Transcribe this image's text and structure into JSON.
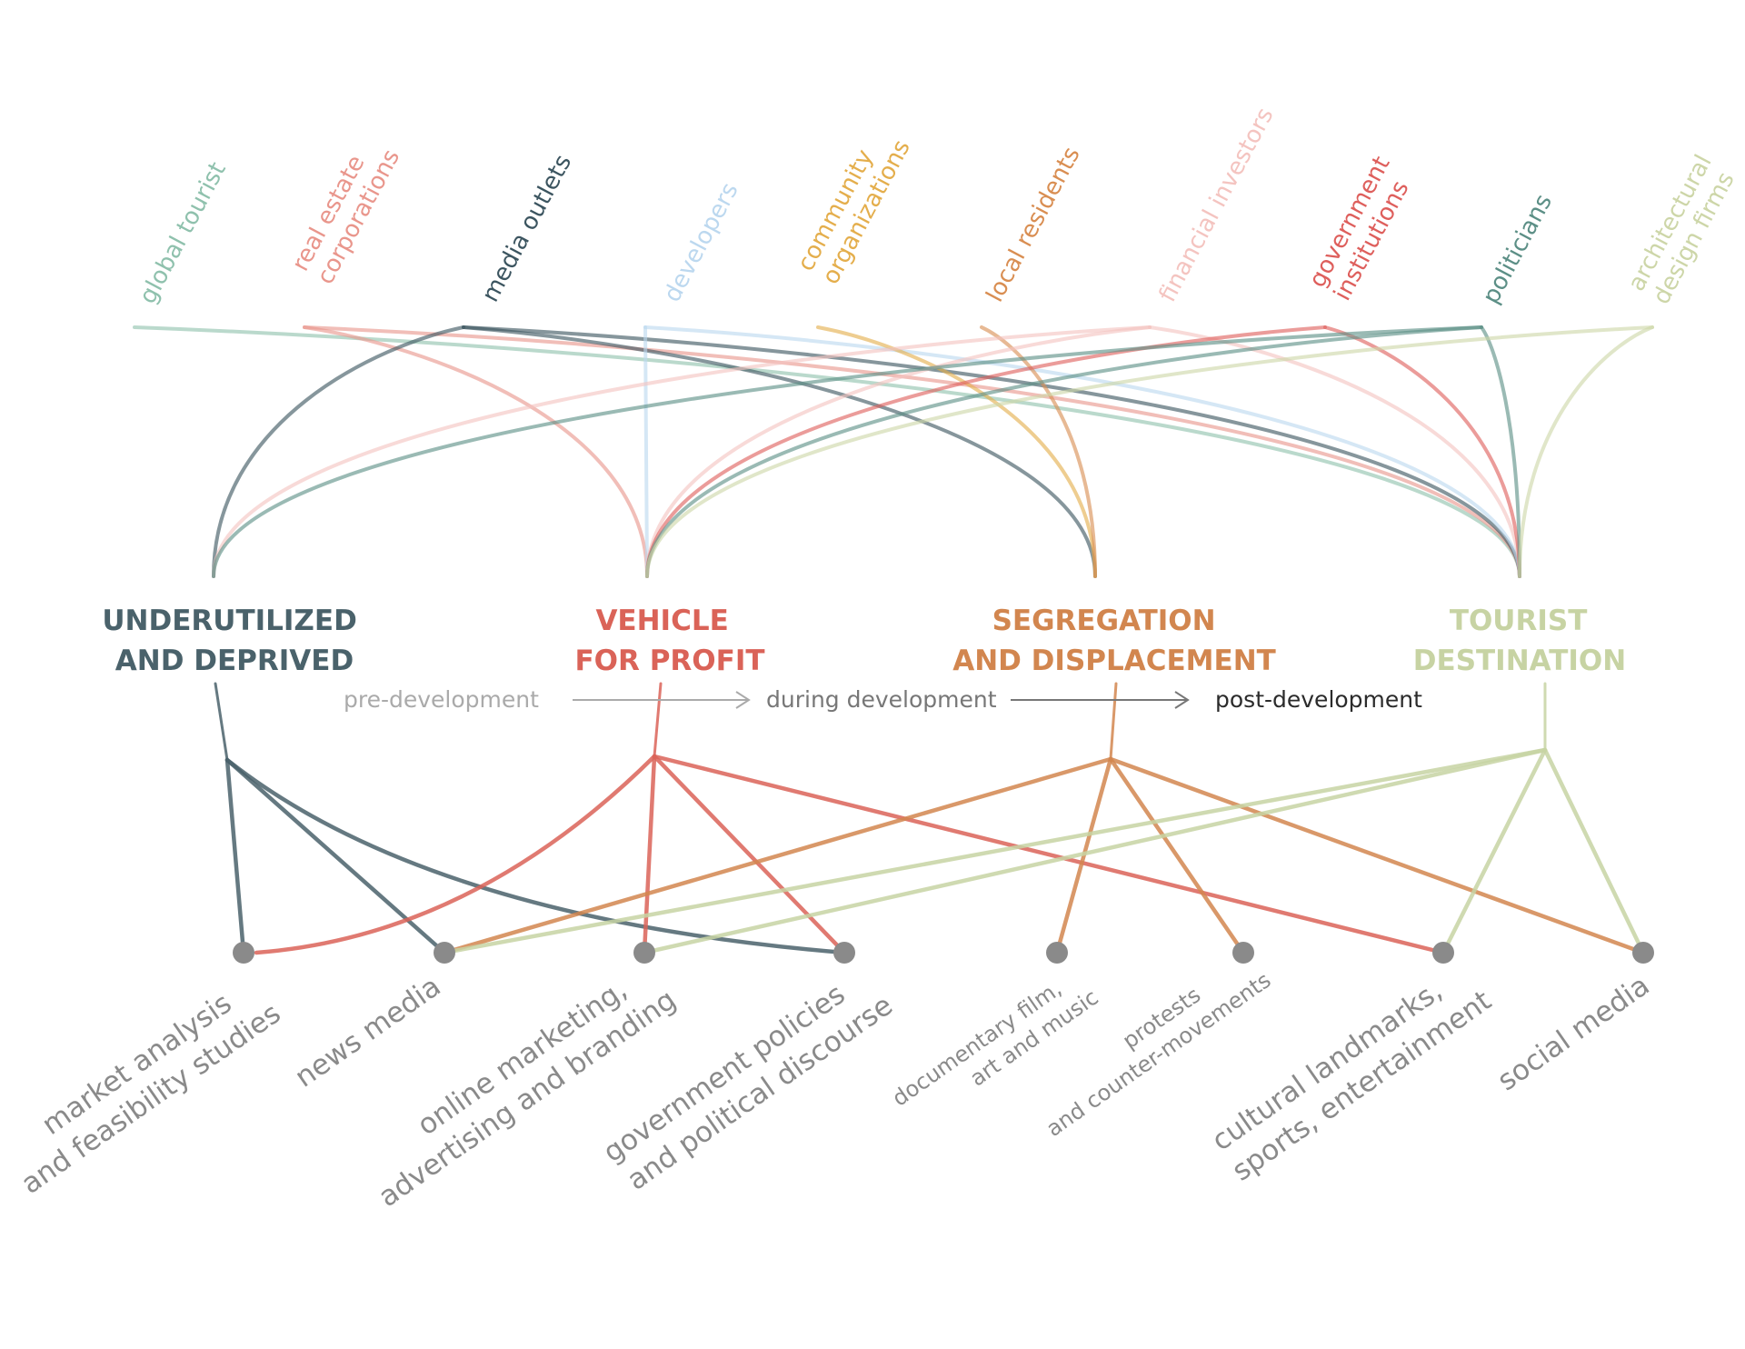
{
  "colors": {
    "global_tourist": "#8fc1ad",
    "real_estate": "#e9968c",
    "media_outlets": "#3c5560",
    "developers": "#bcd8ef",
    "community": "#e4ae4c",
    "local_residents": "#d98e52",
    "financial": "#f4c4c0",
    "government": "#de5f5c",
    "politicians": "#5c8f86",
    "architectural": "#cdd6a8",
    "phase_underutilized": "#4a626b",
    "phase_vehicle": "#da6358",
    "phase_segregation": "#d2864f",
    "phase_tourist": "#c7d3a3",
    "channel_text": "#8a8a8a",
    "stage_pre": "#aaaaaa",
    "stage_during": "#777777",
    "stage_post": "#2b2b2b"
  },
  "actors": [
    {
      "id": "global_tourist",
      "lines": [
        "global tourist"
      ]
    },
    {
      "id": "real_estate",
      "lines": [
        "real estate",
        "corporations"
      ]
    },
    {
      "id": "media_outlets",
      "lines": [
        "media outlets"
      ]
    },
    {
      "id": "developers",
      "lines": [
        "developers"
      ]
    },
    {
      "id": "community",
      "lines": [
        "community",
        "organizations"
      ]
    },
    {
      "id": "local_residents",
      "lines": [
        "local residents"
      ]
    },
    {
      "id": "financial",
      "lines": [
        "financial investors"
      ]
    },
    {
      "id": "government",
      "lines": [
        "government",
        "institutions"
      ]
    },
    {
      "id": "politicians",
      "lines": [
        "politicians"
      ]
    },
    {
      "id": "architectural",
      "lines": [
        "architectural",
        "design firms"
      ]
    }
  ],
  "phases": [
    {
      "id": "underutilized",
      "lines": [
        "UNDERUTILIZED",
        "AND DEPRIVED"
      ]
    },
    {
      "id": "vehicle",
      "lines": [
        "VEHICLE",
        "FOR PROFIT"
      ]
    },
    {
      "id": "segregation",
      "lines": [
        "SEGREGATION",
        "AND DISPLACEMENT"
      ]
    },
    {
      "id": "tourist",
      "lines": [
        "TOURIST",
        "DESTINATION"
      ]
    }
  ],
  "stages": {
    "pre": "pre-development",
    "during": "during development",
    "post": "post-development"
  },
  "channels": [
    {
      "id": "market",
      "lines": [
        "market analysis",
        "and feasibility studies"
      ]
    },
    {
      "id": "news",
      "lines": [
        "news media"
      ]
    },
    {
      "id": "online",
      "lines": [
        "online marketing,",
        "advertising and branding"
      ]
    },
    {
      "id": "govpol",
      "lines": [
        "government policies",
        "and political discourse"
      ]
    },
    {
      "id": "documentary",
      "lines": [
        "documentary film,",
        "art and music"
      ]
    },
    {
      "id": "protests",
      "lines": [
        "protests",
        "and counter-movements"
      ]
    },
    {
      "id": "cultural",
      "lines": [
        "cultural landmarks,",
        "sports, entertainment"
      ]
    },
    {
      "id": "social",
      "lines": [
        "social media"
      ]
    }
  ],
  "actor_links": {
    "global_tourist": [
      "tourist"
    ],
    "real_estate": [
      "vehicle",
      "tourist"
    ],
    "media_outlets": [
      "underutilized",
      "segregation",
      "tourist"
    ],
    "developers": [
      "vehicle",
      "tourist"
    ],
    "community": [
      "segregation"
    ],
    "local_residents": [
      "segregation"
    ],
    "financial": [
      "underutilized",
      "vehicle",
      "tourist"
    ],
    "government": [
      "vehicle",
      "tourist"
    ],
    "politicians": [
      "underutilized",
      "vehicle",
      "tourist"
    ],
    "architectural": [
      "vehicle",
      "tourist"
    ]
  },
  "channel_links": {
    "underutilized": [
      "market",
      "news",
      "govpol"
    ],
    "vehicle": [
      "market",
      "online",
      "govpol",
      "cultural"
    ],
    "segregation": [
      "news",
      "documentary",
      "protests",
      "social"
    ],
    "tourist": [
      "news",
      "online",
      "cultural",
      "social"
    ]
  }
}
